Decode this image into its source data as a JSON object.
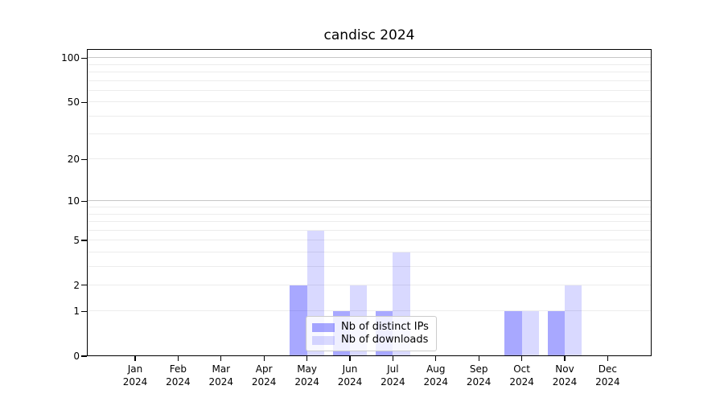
{
  "chart_data": {
    "type": "bar",
    "title": "candisc 2024",
    "categories": [
      "Jan",
      "Feb",
      "Mar",
      "Apr",
      "May",
      "Jun",
      "Jul",
      "Aug",
      "Sep",
      "Oct",
      "Nov",
      "Dec"
    ],
    "year": "2024",
    "series": [
      {
        "name": "Nb of distinct IPs",
        "color": "rgba(0,0,255,0.34)",
        "values": [
          0,
          0,
          0,
          0,
          2,
          1,
          1,
          0,
          0,
          1,
          1,
          0
        ]
      },
      {
        "name": "Nb of downloads",
        "color": "rgba(0,0,255,0.15)",
        "values": [
          0,
          0,
          0,
          0,
          6,
          2,
          4,
          0,
          0,
          1,
          2,
          0
        ]
      }
    ],
    "y_axis": {
      "scale": "log10(1+x)",
      "tick_labels": [
        100,
        50,
        20,
        10,
        5,
        2,
        1,
        0
      ],
      "gridlines": [
        1,
        2,
        3,
        4,
        5,
        6,
        7,
        8,
        9,
        10,
        20,
        30,
        40,
        50,
        60,
        70,
        80,
        90,
        100
      ],
      "emphasized_gridlines": [
        10,
        100
      ],
      "ylim": [
        0,
        115
      ]
    },
    "legend_position": "lower center inside",
    "grid": true,
    "colors": {
      "bar_distinct_ips": "#aaaaf7",
      "bar_downloads": "#dcdcf9",
      "gridline_minor": "#ececec",
      "gridline_major": "#c6c6c6",
      "axis": "#000000"
    }
  }
}
